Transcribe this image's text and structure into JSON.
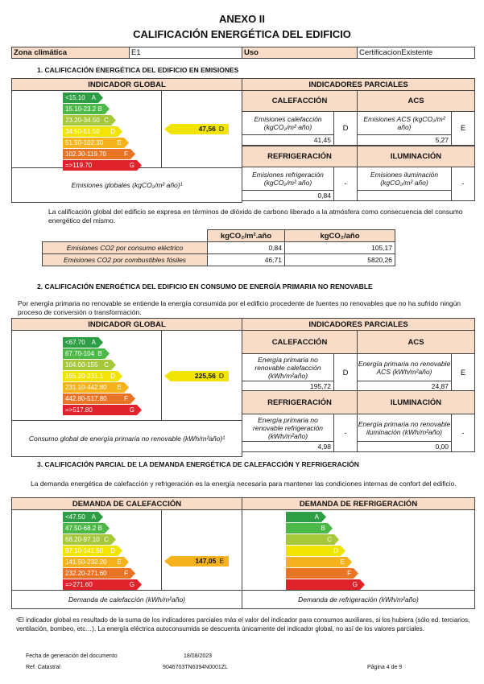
{
  "header": {
    "annex": "ANEXO II",
    "title": "CALIFICACIÓN ENERGÉTICA DEL EDIFICIO"
  },
  "zone": {
    "label": "Zona climática",
    "value": "E1",
    "use_label": "Uso",
    "use_value": "CertificacionExistente"
  },
  "colors": {
    "A": "#2e9e45",
    "B": "#4cb848",
    "C": "#a6c83a",
    "D": "#f0e400",
    "E": "#f5b21c",
    "F": "#ea7426",
    "G": "#e0222a",
    "header_bg": "#f9dcc8"
  },
  "s1": {
    "heading": "1.   CALIFICACIÓN ENERGÉTICA DEL EDIFICIO EN EMISIONES",
    "global_header": "INDICADOR GLOBAL",
    "partial_header": "INDICADORES PARCIALES",
    "scale": [
      {
        "range": "<15.10",
        "letter": "A"
      },
      {
        "range": "15.10-23.2",
        "letter": "B"
      },
      {
        "range": "23.20-34.50",
        "letter": "C"
      },
      {
        "range": "34.50-51.50",
        "letter": "D"
      },
      {
        "range": "51.50-102.30",
        "letter": "E"
      },
      {
        "range": "102.30-119.70",
        "letter": "F"
      },
      {
        "range": "=>119.70",
        "letter": "G"
      }
    ],
    "value": "47,56",
    "letter": "D",
    "caption": "Emisiones globales (kgCO₂/m² año)¹",
    "cal": {
      "title": "CALEFACCIÓN",
      "desc": "Emisiones calefacción (kgCO₂/m² año)",
      "value": "41,45",
      "letter": "D"
    },
    "acs": {
      "title": "ACS",
      "desc": "Emisiones ACS (kgCO₂/m² año)",
      "value": "5,27",
      "letter": "E"
    },
    "ref": {
      "title": "REFRIGERACIÓN",
      "desc": "Emisiones refrigeración (kgCO₂/m² año)",
      "value": "0,84",
      "letter": "-"
    },
    "ilu": {
      "title": "ILUMINACIÓN",
      "desc": "Emisiones iluminación (kgCO₂/m² año)",
      "value": "",
      "letter": "-"
    },
    "paragraph": "La calificación global del edificio se expresa en términos de dióxido de carbono liberado a la atmósfera como consecuencia del consumo energético del mismo.",
    "co2": {
      "col1": "kgCO₂/m².año",
      "col2": "kgCO₂/año",
      "rows": [
        {
          "label": "Emisiones CO2 por consumo eléctrico",
          "v1": "0,84",
          "v2": "105,17"
        },
        {
          "label": "Emisiones CO2 por combustibles fósiles",
          "v1": "46,71",
          "v2": "5820,26"
        }
      ]
    }
  },
  "s2": {
    "heading": "2.   CALIFICACIÓN ENERGÉTICA DEL EDIFICIO EN CONSUMO DE ENERGÍA PRIMARIA NO RENOVABLE",
    "paragraph": "Por energía primaria no renovable se entiende la energía consumida por el edificio procedente de fuentes  no renovables que no ha sufrido ningún proceso de conversión o transformación.",
    "global_header": "INDICADOR GLOBAL",
    "partial_header": "INDICADORES PARCIALES",
    "scale": [
      {
        "range": "<67.70",
        "letter": "A"
      },
      {
        "range": "67.70-104",
        "letter": "B"
      },
      {
        "range": "104.00-155",
        "letter": "C"
      },
      {
        "range": "155.20-231.1",
        "letter": "D"
      },
      {
        "range": "231.10-442.80",
        "letter": "E"
      },
      {
        "range": "442.80-517.80",
        "letter": "F"
      },
      {
        "range": "=>517.80",
        "letter": "G"
      }
    ],
    "value": "225,56",
    "letter": "D",
    "caption": "Consumo global de energía  primaria no renovable (kWh/m²año)¹",
    "cal": {
      "title": "CALEFACCIÓN",
      "desc": "Energía primaria no renovable calefacción (kWh/m²año)",
      "value": "195,72",
      "letter": "D"
    },
    "acs": {
      "title": "ACS",
      "desc": "Energía primaria no renovable ACS (kWh/m²año)",
      "value": "24,87",
      "letter": "E"
    },
    "ref": {
      "title": "REFRIGERACIÓN",
      "desc": "Energía primaria no renovable refrigeración (kWh/m²año)",
      "value": "4,98",
      "letter": "-"
    },
    "ilu": {
      "title": "ILUMINACIÓN",
      "desc": "Energía primaria no renovable iluminación (kWh/m²año)",
      "value": "0,00",
      "letter": "-"
    }
  },
  "s3": {
    "heading": "3.   CALIFICACIÓN PARCIAL DE LA DEMANDA ENERGÉTICA DE CALEFACCIÓN Y REFRIGERACIÓN",
    "paragraph": "La demanda energética de calefacción y refrigeración es la energía necesaria para mantener las condiciones internas de confort del edificio.",
    "heat_header": "DEMANDA DE CALEFACCIÓN",
    "cool_header": "DEMANDA DE REFRIGERACIÓN",
    "heat_scale": [
      {
        "range": "<47.50",
        "letter": "A"
      },
      {
        "range": "47.50-68.2",
        "letter": "B"
      },
      {
        "range": "68.20-97.10",
        "letter": "C"
      },
      {
        "range": "97.10-141.50",
        "letter": "D"
      },
      {
        "range": "141.50-232.20",
        "letter": "E"
      },
      {
        "range": "232.20-271.60",
        "letter": "F"
      },
      {
        "range": "=>271.60",
        "letter": "G"
      }
    ],
    "heat_value": "147,05",
    "heat_letter": "E",
    "cool_scale": [
      {
        "range": "",
        "letter": "A"
      },
      {
        "range": "",
        "letter": "B"
      },
      {
        "range": "",
        "letter": "C"
      },
      {
        "range": "",
        "letter": "D"
      },
      {
        "range": "",
        "letter": "E"
      },
      {
        "range": "",
        "letter": "F"
      },
      {
        "range": "",
        "letter": "G"
      }
    ],
    "heat_caption": "Demanda de calefacción (kWh/m²año)",
    "cool_caption": "Demanda de refrigeración (kWh/m²año)"
  },
  "footnote": "¹El indicador global es resultado de la suma de los indicadores parciales más el valor del indicador para consumos auxiliares, si los hubiera (sólo ed. terciarios, ventilación, bombeo, etc…). La energía eléctrica autoconsumida se descuenta  únicamente del indicador global, no así de los valores parciales.",
  "footer": {
    "date_label": "Fecha de generación del documento",
    "date": "18/08/2023",
    "ref_label": "Ref. Catastral",
    "ref": "9046703TN6394N0001ZL",
    "page": "Página 4  de  9"
  }
}
